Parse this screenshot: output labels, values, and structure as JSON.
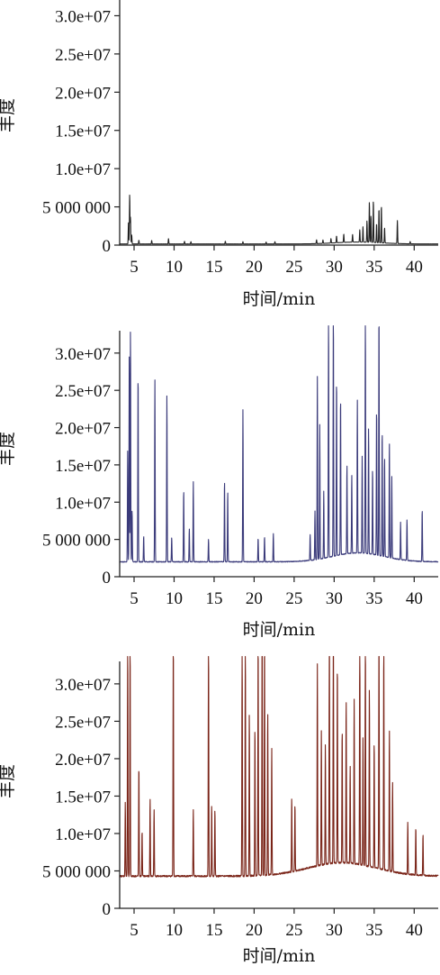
{
  "chart_data": [
    {
      "type": "line",
      "title": "",
      "xlabel": "时间/min",
      "ylabel": "丰度",
      "xlim": [
        3.2,
        43
      ],
      "ylim": [
        0,
        33000000
      ],
      "x_ticks": [
        5,
        10,
        15,
        20,
        25,
        30,
        35,
        40
      ],
      "x_tick_labels": [
        "5",
        "10",
        "15",
        "20",
        "25",
        "30",
        "35",
        "40"
      ],
      "y_ticks": [
        0,
        5000000,
        10000000,
        15000000,
        20000000,
        25000000,
        30000000
      ],
      "y_tick_labels": [
        "0",
        "5 000 000",
        "1.0e+07",
        "1.5e+07",
        "2.0e+07",
        "2.5e+07",
        "3.0e+07"
      ],
      "grid": false,
      "color": "#222222",
      "baseline": 150000,
      "hump": {
        "center": 33,
        "height": 250000,
        "width": 4
      },
      "peaks": [
        [
          4.3,
          2800000
        ],
        [
          4.45,
          6500000
        ],
        [
          4.55,
          3500000
        ],
        [
          4.7,
          1200000
        ],
        [
          5.6,
          500000
        ],
        [
          7.2,
          450000
        ],
        [
          9.3,
          700000
        ],
        [
          11.3,
          350000
        ],
        [
          12.1,
          300000
        ],
        [
          16.4,
          350000
        ],
        [
          18.6,
          300000
        ],
        [
          21.5,
          250000
        ],
        [
          22.6,
          300000
        ],
        [
          27.8,
          500000
        ],
        [
          28.6,
          450000
        ],
        [
          29.6,
          600000
        ],
        [
          30.3,
          900000
        ],
        [
          31.2,
          1100000
        ],
        [
          32.3,
          1000000
        ],
        [
          33.2,
          1600000
        ],
        [
          33.6,
          2000000
        ],
        [
          34.1,
          2800000
        ],
        [
          34.4,
          5300000
        ],
        [
          34.6,
          3500000
        ],
        [
          34.9,
          5500000
        ],
        [
          35.3,
          2500000
        ],
        [
          35.6,
          4500000
        ],
        [
          35.9,
          4900000
        ],
        [
          36.3,
          2000000
        ],
        [
          37.9,
          3000000
        ],
        [
          39.5,
          300000
        ]
      ]
    },
    {
      "type": "line",
      "title": "",
      "xlabel": "时间/min",
      "ylabel": "丰度",
      "xlim": [
        3.2,
        43
      ],
      "ylim": [
        0,
        33000000
      ],
      "x_ticks": [
        5,
        10,
        15,
        20,
        25,
        30,
        35,
        40
      ],
      "x_tick_labels": [
        "5",
        "10",
        "15",
        "20",
        "25",
        "30",
        "35",
        "40"
      ],
      "y_ticks": [
        0,
        5000000,
        10000000,
        15000000,
        20000000,
        25000000,
        30000000
      ],
      "y_tick_labels": [
        "0",
        "5 000 000",
        "1.0e+07",
        "1.5e+07",
        "2.0e+07",
        "2.5e+07",
        "3.0e+07"
      ],
      "grid": false,
      "color": "#3a3a7a",
      "baseline": 2000000,
      "hump": {
        "center": 33,
        "height": 1200000,
        "width": 4.5
      },
      "peaks": [
        [
          4.2,
          15000000
        ],
        [
          4.4,
          28000000
        ],
        [
          4.55,
          31500000
        ],
        [
          4.75,
          7000000
        ],
        [
          5.5,
          25500000
        ],
        [
          6.2,
          3500000
        ],
        [
          7.6,
          24500000
        ],
        [
          9.1,
          22500000
        ],
        [
          9.7,
          3300000
        ],
        [
          11.2,
          9700000
        ],
        [
          11.9,
          4500000
        ],
        [
          12.4,
          10800000
        ],
        [
          14.3,
          3000000
        ],
        [
          16.3,
          11000000
        ],
        [
          16.7,
          9500000
        ],
        [
          18.6,
          20500000
        ],
        [
          20.5,
          3200000
        ],
        [
          21.3,
          3400000
        ],
        [
          22.4,
          3800000
        ],
        [
          27.0,
          3500000
        ],
        [
          27.6,
          6500000
        ],
        [
          27.9,
          24500000
        ],
        [
          28.2,
          18000000
        ],
        [
          28.7,
          9000000
        ],
        [
          29.3,
          33000000
        ],
        [
          29.9,
          33000000
        ],
        [
          30.3,
          24000000
        ],
        [
          30.8,
          21500000
        ],
        [
          31.6,
          12000000
        ],
        [
          32.2,
          10500000
        ],
        [
          32.9,
          20500000
        ],
        [
          33.5,
          13000000
        ],
        [
          33.9,
          33000000
        ],
        [
          34.3,
          17000000
        ],
        [
          34.8,
          11500000
        ],
        [
          35.3,
          20000000
        ],
        [
          35.6,
          33000000
        ],
        [
          36.0,
          17000000
        ],
        [
          36.3,
          13500000
        ],
        [
          36.9,
          15500000
        ],
        [
          37.2,
          11000000
        ],
        [
          38.3,
          5000000
        ],
        [
          39.1,
          5500000
        ],
        [
          41.0,
          7000000
        ]
      ]
    },
    {
      "type": "line",
      "title": "",
      "xlabel": "时间/min",
      "ylabel": "丰度",
      "xlim": [
        3.2,
        43
      ],
      "ylim": [
        0,
        33000000
      ],
      "x_ticks": [
        5,
        10,
        15,
        20,
        25,
        30,
        35,
        40
      ],
      "x_tick_labels": [
        "5",
        "10",
        "15",
        "20",
        "25",
        "30",
        "35",
        "40"
      ],
      "y_ticks": [
        0,
        5000000,
        10000000,
        15000000,
        20000000,
        25000000,
        30000000
      ],
      "y_tick_labels": [
        "0",
        "5 000 000",
        "1.0e+07",
        "1.5e+07",
        "2.0e+07",
        "2.5e+07",
        "3.0e+07"
      ],
      "grid": false,
      "color": "#7a2418",
      "baseline": 4300000,
      "hump": {
        "center": 31,
        "height": 1800000,
        "width": 6
      },
      "peaks": [
        [
          3.9,
          10000000
        ],
        [
          4.2,
          33000000
        ],
        [
          4.5,
          33000000
        ],
        [
          5.6,
          15000000
        ],
        [
          6.0,
          6000000
        ],
        [
          7.0,
          10500000
        ],
        [
          7.5,
          9000000
        ],
        [
          9.9,
          33000000
        ],
        [
          12.4,
          9000000
        ],
        [
          14.3,
          33000000
        ],
        [
          14.7,
          9500000
        ],
        [
          15.1,
          9000000
        ],
        [
          18.5,
          33000000
        ],
        [
          18.9,
          33000000
        ],
        [
          19.4,
          22000000
        ],
        [
          20.1,
          20000000
        ],
        [
          20.5,
          31500000
        ],
        [
          21.0,
          33000000
        ],
        [
          21.3,
          33000000
        ],
        [
          21.7,
          22000000
        ],
        [
          22.2,
          17000000
        ],
        [
          24.7,
          10000000
        ],
        [
          25.1,
          9000000
        ],
        [
          27.9,
          27000000
        ],
        [
          28.4,
          18000000
        ],
        [
          28.9,
          16000000
        ],
        [
          29.4,
          33000000
        ],
        [
          29.9,
          33000000
        ],
        [
          30.4,
          27000000
        ],
        [
          31.0,
          18000000
        ],
        [
          31.5,
          22000000
        ],
        [
          32.0,
          13000000
        ],
        [
          32.5,
          22000000
        ],
        [
          33.2,
          33000000
        ],
        [
          33.6,
          17000000
        ],
        [
          33.9,
          33000000
        ],
        [
          34.4,
          24000000
        ],
        [
          35.0,
          17000000
        ],
        [
          35.6,
          33000000
        ],
        [
          36.2,
          30000000
        ],
        [
          36.9,
          19000000
        ],
        [
          37.3,
          12000000
        ],
        [
          39.2,
          7000000
        ],
        [
          40.2,
          6500000
        ],
        [
          41.1,
          5500000
        ]
      ]
    }
  ]
}
